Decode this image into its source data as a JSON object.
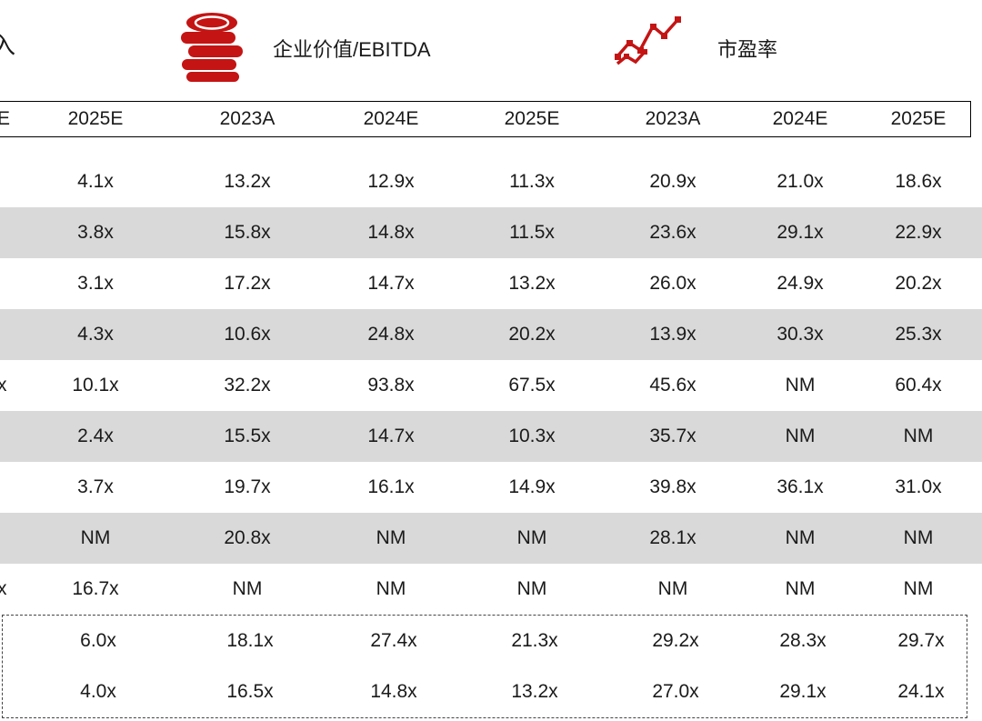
{
  "page": {
    "accent_red": "#c41414",
    "stripe_gray": "#d9d9d9",
    "background": "#ffffff"
  },
  "legend": {
    "left_partial": "入",
    "items": [
      {
        "icon": "coins-icon",
        "label": "企业价值/EBITDA"
      },
      {
        "icon": "line-chart-icon",
        "label": "市盈率"
      }
    ]
  },
  "table": {
    "header": {
      "left_partial": "E",
      "columns": [
        "2025E",
        "2023A",
        "2024E",
        "2025E",
        "2023A",
        "2024E",
        "2025E"
      ]
    },
    "rows": [
      {
        "left_partial": "",
        "shaded": false,
        "values": [
          "4.1x",
          "13.2x",
          "12.9x",
          "11.3x",
          "20.9x",
          "21.0x",
          "18.6x"
        ]
      },
      {
        "left_partial": "",
        "shaded": true,
        "values": [
          "3.8x",
          "15.8x",
          "14.8x",
          "11.5x",
          "23.6x",
          "29.1x",
          "22.9x"
        ]
      },
      {
        "left_partial": "",
        "shaded": false,
        "values": [
          "3.1x",
          "17.2x",
          "14.7x",
          "13.2x",
          "26.0x",
          "24.9x",
          "20.2x"
        ]
      },
      {
        "left_partial": "",
        "shaded": true,
        "values": [
          "4.3x",
          "10.6x",
          "24.8x",
          "20.2x",
          "13.9x",
          "30.3x",
          "25.3x"
        ]
      },
      {
        "left_partial": "x",
        "shaded": false,
        "values": [
          "10.1x",
          "32.2x",
          "93.8x",
          "67.5x",
          "45.6x",
          "NM",
          "60.4x"
        ]
      },
      {
        "left_partial": "",
        "shaded": true,
        "values": [
          "2.4x",
          "15.5x",
          "14.7x",
          "10.3x",
          "35.7x",
          "NM",
          "NM"
        ]
      },
      {
        "left_partial": "",
        "shaded": false,
        "values": [
          "3.7x",
          "19.7x",
          "16.1x",
          "14.9x",
          "39.8x",
          "36.1x",
          "31.0x"
        ]
      },
      {
        "left_partial": "",
        "shaded": true,
        "values": [
          "NM",
          "20.8x",
          "NM",
          "NM",
          "28.1x",
          "NM",
          "NM"
        ]
      },
      {
        "left_partial": "x",
        "shaded": false,
        "values": [
          "16.7x",
          "NM",
          "NM",
          "NM",
          "NM",
          "NM",
          "NM"
        ]
      }
    ],
    "summary_rows": [
      {
        "left_partial": "",
        "values": [
          "6.0x",
          "18.1x",
          "27.4x",
          "21.3x",
          "29.2x",
          "28.3x",
          "29.7x"
        ]
      },
      {
        "left_partial": "",
        "values": [
          "4.0x",
          "16.5x",
          "14.8x",
          "13.2x",
          "27.0x",
          "29.1x",
          "24.1x"
        ]
      }
    ]
  }
}
